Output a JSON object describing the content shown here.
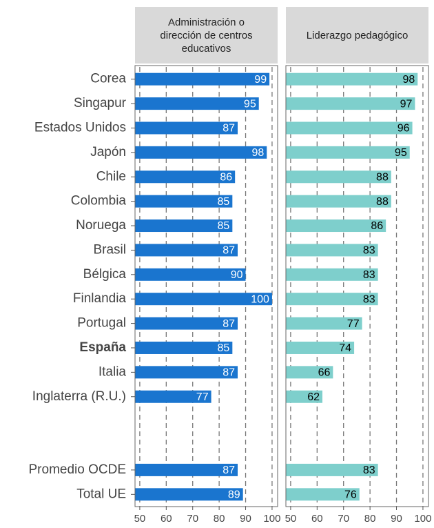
{
  "chart_data": {
    "type": "bar",
    "orientation": "horizontal",
    "facet": true,
    "categories": [
      "Corea",
      "Singapur",
      "Estados Unidos",
      "Japón",
      "Chile",
      "Colombia",
      "Noruega",
      "Brasil",
      "Bélgica",
      "Finlandia",
      "Portugal",
      "España",
      "Italia",
      "Inglaterra (R.U.)",
      null,
      null,
      "Promedio OCDE",
      "Total UE"
    ],
    "bold_category_index": 11,
    "series": [
      {
        "name": "Administración o\ndirección de centros\neducativos",
        "color": "#1a75cf",
        "label_color": "#ffffff",
        "values": [
          99,
          95,
          87,
          98,
          86,
          85,
          85,
          87,
          90,
          100,
          87,
          85,
          87,
          77,
          null,
          null,
          87,
          89
        ]
      },
      {
        "name": "Liderazgo pedagógico",
        "color": "#7ecfcc",
        "label_color": "#000000",
        "values": [
          98,
          97,
          96,
          95,
          88,
          88,
          86,
          83,
          83,
          83,
          77,
          74,
          66,
          62,
          null,
          null,
          83,
          76
        ]
      }
    ],
    "xlim": [
      48.2,
      102.1
    ],
    "xticks": [
      50,
      60,
      70,
      80,
      90,
      100
    ],
    "grid": true,
    "grid_style": "dashed"
  }
}
